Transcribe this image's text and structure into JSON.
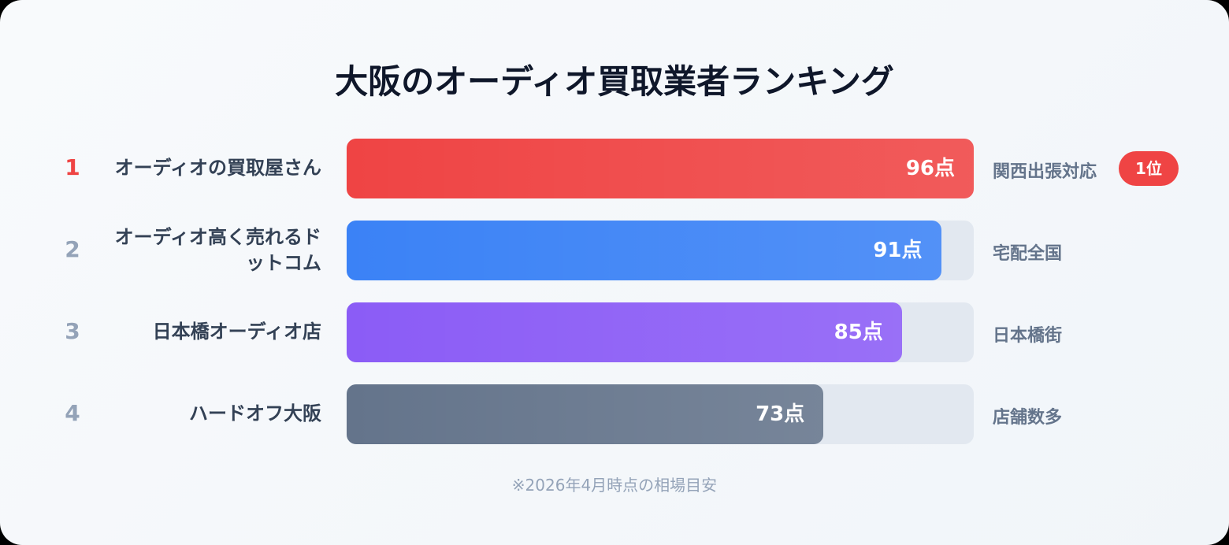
{
  "chart_data": {
    "type": "bar",
    "orientation": "horizontal",
    "title": "大阪のオーディオ買取業者ランキング",
    "ranks": [
      1,
      2,
      3,
      4
    ],
    "categories": [
      "オーディオの買取屋さん",
      "オーディオ高く売れるドットコム",
      "日本橋オーディオ店",
      "ハードオフ大阪"
    ],
    "values": [
      96,
      91,
      85,
      73
    ],
    "value_labels": [
      "96点",
      "91点",
      "85点",
      "73点"
    ],
    "colors": [
      "#ef4444",
      "#3b82f6",
      "#8b5cf6",
      "#64748b"
    ],
    "notes": [
      "関西出張対応",
      "宅配全国",
      "日本橋街",
      "店舗数多"
    ],
    "badges": [
      "1位",
      null,
      null,
      null
    ],
    "xlim": [
      0,
      96
    ],
    "footnote": "※2026年4月時点の相場目安"
  }
}
